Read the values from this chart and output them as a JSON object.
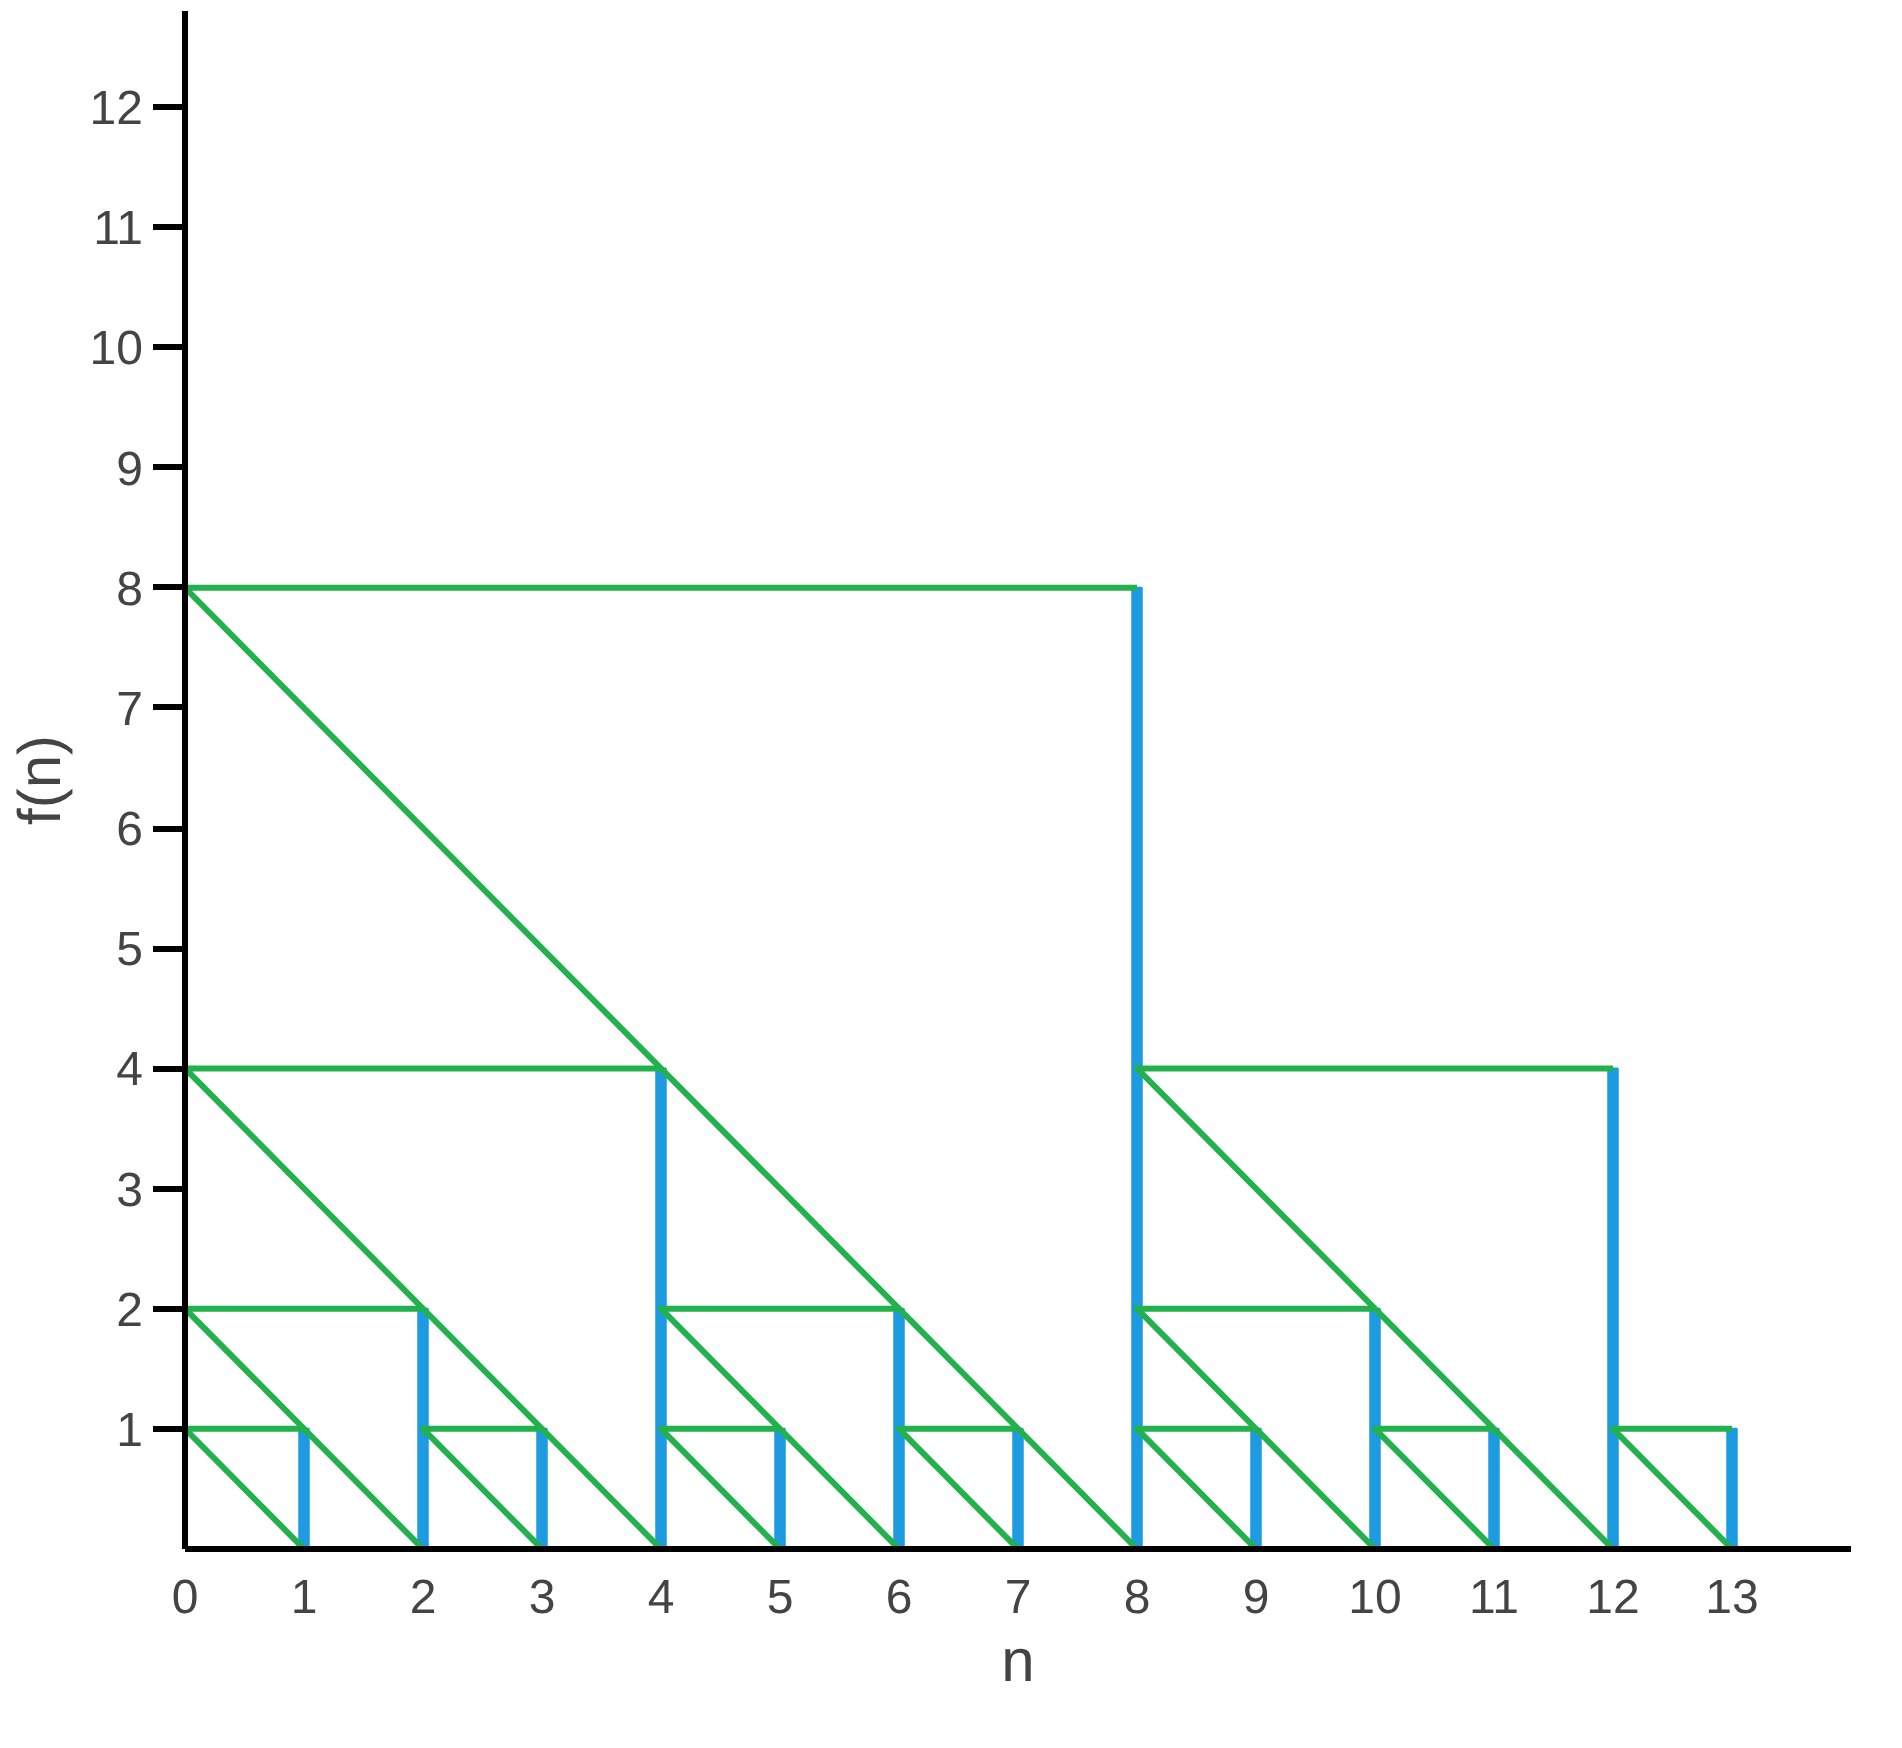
{
  "chart_data": {
    "type": "bar",
    "xlabel": "n",
    "ylabel": "f(n)",
    "xlim": [
      0,
      14
    ],
    "ylim": [
      0,
      12.8
    ],
    "xticks": [
      0,
      1,
      2,
      3,
      4,
      5,
      6,
      7,
      8,
      9,
      10,
      11,
      12,
      13
    ],
    "yticks": [
      1,
      2,
      3,
      4,
      5,
      6,
      7,
      8,
      9,
      10,
      11,
      12
    ],
    "grid": false,
    "series": [
      {
        "color": "#1e9be0",
        "x": [
          1,
          2,
          3,
          4,
          5,
          6,
          7,
          8,
          9,
          10,
          11,
          12,
          13
        ],
        "values": [
          1,
          2,
          1,
          4,
          1,
          2,
          1,
          8,
          1,
          2,
          1,
          4,
          1
        ]
      },
      {
        "type": "line",
        "color": "#22b14c",
        "x": [
          1,
          0,
          1
        ],
        "values": [
          1,
          1,
          0
        ]
      },
      {
        "type": "line",
        "color": "#22b14c",
        "x": [
          2,
          0,
          2
        ],
        "values": [
          2,
          2,
          0
        ]
      },
      {
        "type": "line",
        "color": "#22b14c",
        "x": [
          3,
          2,
          3
        ],
        "values": [
          1,
          1,
          0
        ]
      },
      {
        "type": "line",
        "color": "#22b14c",
        "x": [
          4,
          0,
          4
        ],
        "values": [
          4,
          4,
          0
        ]
      },
      {
        "type": "line",
        "color": "#22b14c",
        "x": [
          5,
          4,
          5
        ],
        "values": [
          1,
          1,
          0
        ]
      },
      {
        "type": "line",
        "color": "#22b14c",
        "x": [
          6,
          4,
          6
        ],
        "values": [
          2,
          2,
          0
        ]
      },
      {
        "type": "line",
        "color": "#22b14c",
        "x": [
          7,
          6,
          7
        ],
        "values": [
          1,
          1,
          0
        ]
      },
      {
        "type": "line",
        "color": "#22b14c",
        "x": [
          8,
          0,
          8
        ],
        "values": [
          8,
          8,
          0
        ]
      },
      {
        "type": "line",
        "color": "#22b14c",
        "x": [
          9,
          8,
          9
        ],
        "values": [
          1,
          1,
          0
        ]
      },
      {
        "type": "line",
        "color": "#22b14c",
        "x": [
          10,
          8,
          10
        ],
        "values": [
          2,
          2,
          0
        ]
      },
      {
        "type": "line",
        "color": "#22b14c",
        "x": [
          11,
          10,
          11
        ],
        "values": [
          1,
          1,
          0
        ]
      },
      {
        "type": "line",
        "color": "#22b14c",
        "x": [
          12,
          8,
          12
        ],
        "values": [
          4,
          4,
          0
        ]
      },
      {
        "type": "line",
        "color": "#22b14c",
        "x": [
          13,
          12,
          13
        ],
        "values": [
          1,
          1,
          0
        ]
      }
    ]
  }
}
